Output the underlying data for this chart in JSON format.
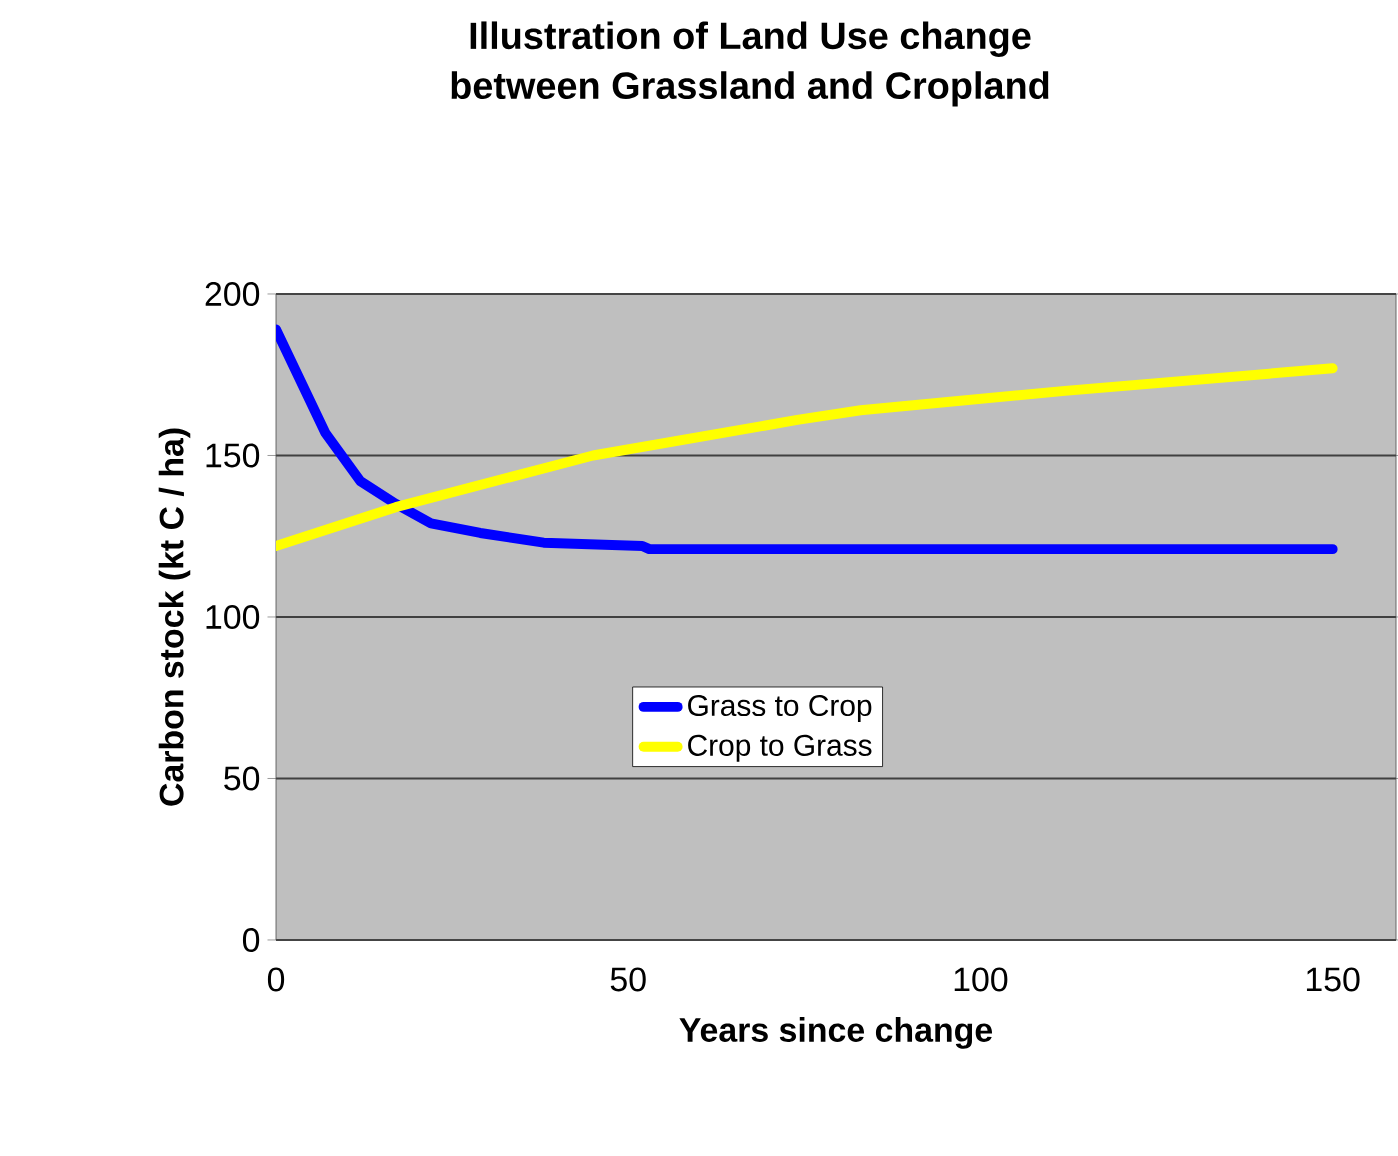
{
  "chart_data": {
    "type": "line",
    "title": "Illustration of Land Use change\nbetween Grassland and Cropland",
    "xlabel": "Years since change",
    "ylabel": "Carbon stock (kt C / ha)",
    "xlim": [
      0,
      159
    ],
    "ylim": [
      0,
      200
    ],
    "xticks": [
      0,
      50,
      100,
      150
    ],
    "yticks": [
      0,
      50,
      100,
      150,
      200
    ],
    "grid": "y",
    "legend": "center",
    "marker": "none",
    "line_style": "solid",
    "series": [
      {
        "name": "Grass to Crop",
        "color": "#0000ff",
        "x": [
          0,
          7,
          12,
          17,
          22,
          29,
          38,
          52,
          53,
          100,
          150
        ],
        "values": [
          189,
          157,
          142,
          135,
          129,
          126,
          123,
          122,
          121,
          121,
          121
        ]
      },
      {
        "name": "Crop to Grass",
        "color": "#ffff00",
        "x": [
          0,
          17,
          45,
          74,
          83,
          112,
          150
        ],
        "values": [
          122,
          134,
          150,
          161,
          164,
          170,
          177
        ]
      }
    ]
  }
}
